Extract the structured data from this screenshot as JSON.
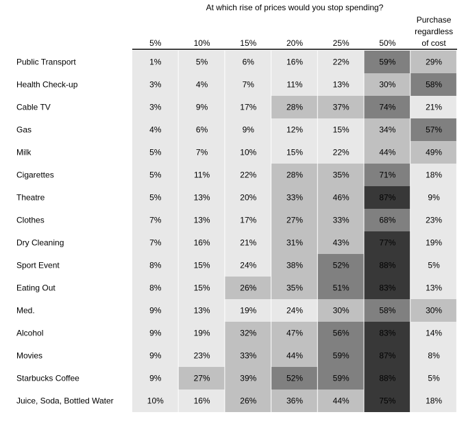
{
  "chart_data": {
    "type": "heatmap",
    "title": "At which rise of prices would you stop spending?",
    "columns": [
      "5%",
      "10%",
      "15%",
      "20%",
      "25%",
      "50%",
      "Purchase regardless of cost"
    ],
    "column_header_lines": [
      [
        "5%"
      ],
      [
        "10%"
      ],
      [
        "15%"
      ],
      [
        "20%"
      ],
      [
        "25%"
      ],
      [
        "50%"
      ],
      [
        "Purchase",
        "regardless",
        "of cost"
      ]
    ],
    "rows": [
      "Public Transport",
      "Health Check-up",
      "Cable TV",
      "Gas",
      "Milk",
      "Cigarettes",
      "Theatre",
      "Clothes",
      "Dry Cleaning",
      "Sport Event",
      "Eating Out",
      "Med.",
      "Alcohol",
      "Movies",
      "Starbucks Coffee",
      "Juice, Soda, Bottled Water"
    ],
    "values": [
      [
        1,
        5,
        6,
        16,
        22,
        59,
        29
      ],
      [
        3,
        4,
        7,
        11,
        13,
        30,
        58
      ],
      [
        3,
        9,
        17,
        28,
        37,
        74,
        21
      ],
      [
        4,
        6,
        9,
        12,
        15,
        34,
        57
      ],
      [
        5,
        7,
        10,
        15,
        22,
        44,
        49
      ],
      [
        5,
        11,
        22,
        28,
        35,
        71,
        18
      ],
      [
        5,
        13,
        20,
        33,
        46,
        87,
        9
      ],
      [
        7,
        13,
        17,
        27,
        33,
        68,
        23
      ],
      [
        7,
        16,
        21,
        31,
        43,
        77,
        19
      ],
      [
        8,
        15,
        24,
        38,
        52,
        88,
        5
      ],
      [
        8,
        15,
        26,
        35,
        51,
        83,
        13
      ],
      [
        9,
        13,
        19,
        24,
        30,
        58,
        30
      ],
      [
        9,
        19,
        32,
        47,
        56,
        83,
        14
      ],
      [
        9,
        23,
        33,
        44,
        59,
        87,
        8
      ],
      [
        9,
        27,
        39,
        52,
        59,
        88,
        5
      ],
      [
        10,
        16,
        26,
        36,
        44,
        75,
        18
      ]
    ],
    "value_suffix": "%",
    "color_scale": [
      {
        "min": 0,
        "color": "#e8e8e8"
      },
      {
        "min": 25,
        "color": "#c0c0c0"
      },
      {
        "min": 50,
        "color": "#808080"
      },
      {
        "min": 75,
        "color": "#383838"
      }
    ]
  }
}
